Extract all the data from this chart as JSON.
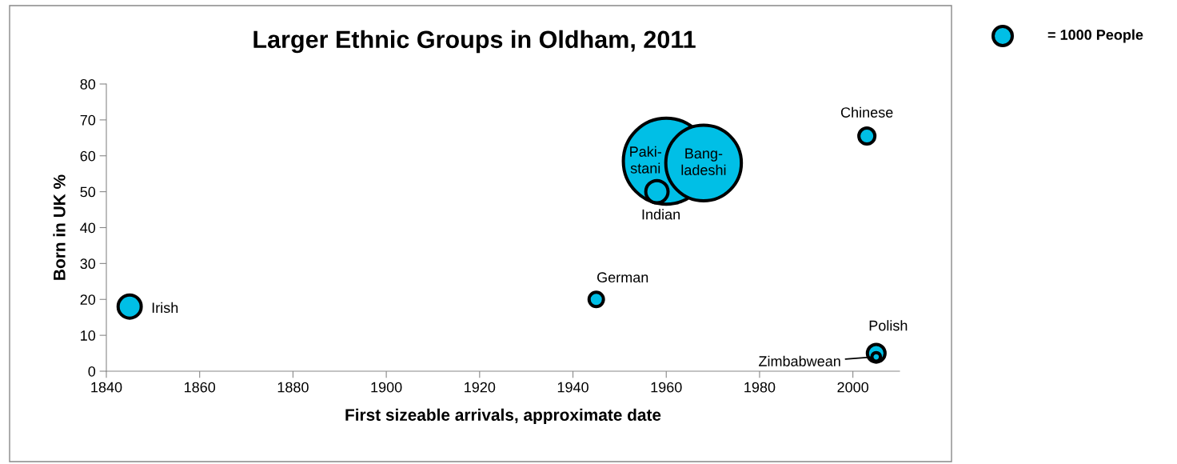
{
  "chart_data": {
    "type": "bubble",
    "title": "Larger Ethnic Groups in Oldham, 2011",
    "xlabel": "First sizeable arrivals, approximate date",
    "ylabel": "Born in UK %",
    "x": [
      1845,
      1945,
      1960,
      1968,
      1958,
      2003,
      2005,
      2005
    ],
    "values": [
      18,
      20,
      58.5,
      58,
      50,
      65.5,
      5,
      4
    ],
    "sizes": [
      1450,
      560,
      20000,
      15500,
      1350,
      700,
      850,
      200
    ],
    "size_legend": [
      {
        "value": 1000,
        "label": "= 1000 People"
      }
    ],
    "color": "#00bfe6",
    "xlim": [
      1840,
      2010
    ],
    "xticks": [
      1840,
      1860,
      1880,
      1900,
      1920,
      1940,
      1960,
      1980,
      2000
    ],
    "ylim": [
      0,
      80
    ],
    "yticks": [
      0,
      10,
      20,
      30,
      40,
      50,
      60,
      70,
      80
    ],
    "grid": false,
    "annotations": [
      {
        "text": "Irish",
        "x": 1845,
        "y": 18
      },
      {
        "text": "German",
        "x": 1945,
        "y": 20
      },
      {
        "text": "Paki-\nstani",
        "x": 1960,
        "y": 58.5
      },
      {
        "text": "Bang-\nladeshi",
        "x": 1968,
        "y": 58
      },
      {
        "text": "Indian",
        "x": 1958,
        "y": 50
      },
      {
        "text": "Chinese",
        "x": 2003,
        "y": 65.5
      },
      {
        "text": "Polish",
        "x": 2005,
        "y": 5
      },
      {
        "text": "Zimbabwean",
        "x": 2005,
        "y": 4
      }
    ]
  }
}
